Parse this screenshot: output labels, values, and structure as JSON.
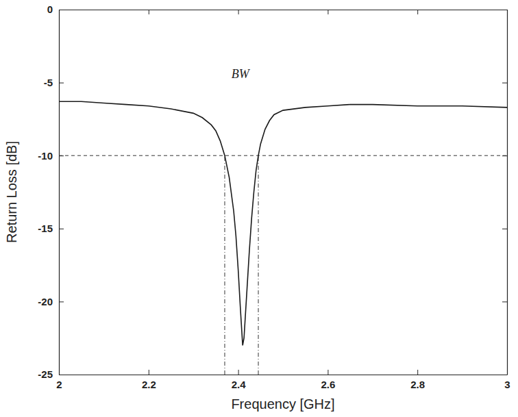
{
  "chart_data": {
    "type": "line",
    "x_label": "Frequency [GHz]",
    "y_label": "Return Loss [dB]",
    "x": [
      2.0,
      2.05,
      2.1,
      2.15,
      2.2,
      2.25,
      2.3,
      2.32,
      2.34,
      2.35,
      2.36,
      2.37,
      2.38,
      2.39,
      2.395,
      2.4,
      2.405,
      2.41,
      2.413,
      2.416,
      2.42,
      2.425,
      2.43,
      2.435,
      2.44,
      2.445,
      2.45,
      2.46,
      2.47,
      2.48,
      2.5,
      2.55,
      2.6,
      2.65,
      2.7,
      2.8,
      2.9,
      3.0
    ],
    "values": [
      -6.3,
      -6.3,
      -6.4,
      -6.5,
      -6.6,
      -6.8,
      -7.1,
      -7.4,
      -7.9,
      -8.3,
      -9.0,
      -10.0,
      -11.5,
      -13.8,
      -15.5,
      -17.8,
      -20.5,
      -23.0,
      -22.5,
      -21.0,
      -19.0,
      -16.5,
      -14.3,
      -12.5,
      -11.0,
      -10.0,
      -9.2,
      -8.2,
      -7.6,
      -7.2,
      -6.9,
      -6.7,
      -6.6,
      -6.5,
      -6.5,
      -6.6,
      -6.6,
      -6.7
    ],
    "color": "#1a1a1a",
    "xlim": [
      2,
      3
    ],
    "xticks": [
      2,
      2.2,
      2.4,
      2.6,
      2.8,
      3
    ],
    "ylim": [
      -25,
      0
    ],
    "yticks": [
      -25,
      -20,
      -15,
      -10,
      -5,
      0
    ],
    "hlines": [
      -10
    ],
    "vlines": [
      2.37,
      2.445
    ],
    "annotations": [
      {
        "text": "BW",
        "x": 2.405,
        "y": -4.7
      }
    ],
    "grid": false
  }
}
